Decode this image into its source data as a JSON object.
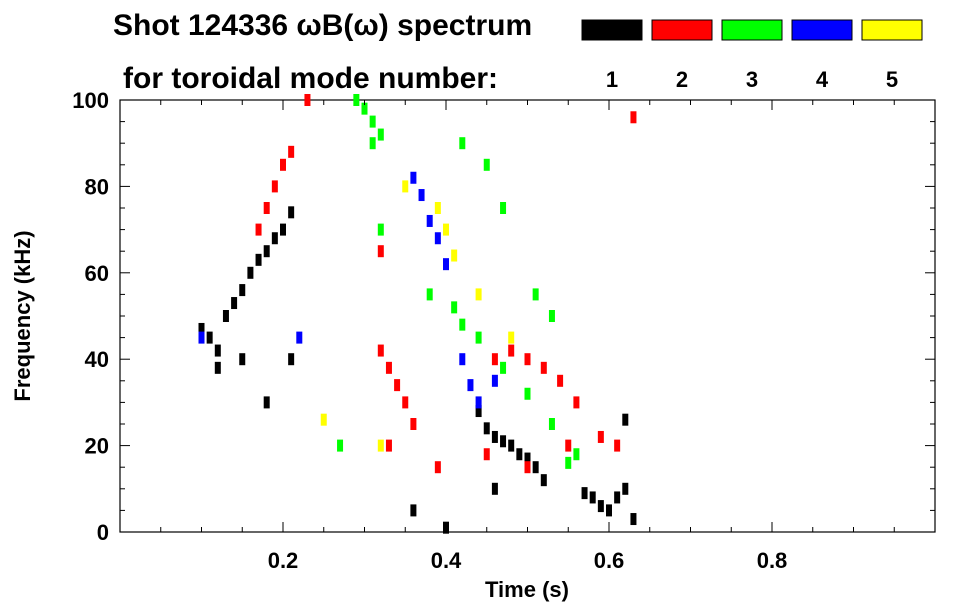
{
  "chart_data": {
    "type": "scatter",
    "title_line1": "Shot 124336 ωB(ω) spectrum",
    "title_line2": "for toroidal mode number:",
    "xlabel": "Time (s)",
    "ylabel": "Frequency (kHz)",
    "xlim": [
      0.0,
      1.0
    ],
    "ylim": [
      0,
      100
    ],
    "xticks": [
      {
        "value": 0.2,
        "label": "0.2"
      },
      {
        "value": 0.4,
        "label": "0.4"
      },
      {
        "value": 0.6,
        "label": "0.6"
      },
      {
        "value": 0.8,
        "label": "0.8"
      }
    ],
    "yticks": [
      {
        "value": 0,
        "label": "0"
      },
      {
        "value": 20,
        "label": "20"
      },
      {
        "value": 40,
        "label": "40"
      },
      {
        "value": 60,
        "label": "60"
      },
      {
        "value": 80,
        "label": "80"
      },
      {
        "value": 100,
        "label": "100"
      }
    ],
    "legend": [
      {
        "label": "1",
        "color": "#000000"
      },
      {
        "label": "2",
        "color": "#ff0000"
      },
      {
        "label": "3",
        "color": "#00ff00"
      },
      {
        "label": "4",
        "color": "#0000ff"
      },
      {
        "label": "5",
        "color": "#ffff00"
      }
    ],
    "series": [
      {
        "name": "n=1",
        "color": "#000000",
        "points": [
          [
            0.1,
            47
          ],
          [
            0.11,
            45
          ],
          [
            0.12,
            42
          ],
          [
            0.13,
            50
          ],
          [
            0.14,
            53
          ],
          [
            0.15,
            56
          ],
          [
            0.16,
            60
          ],
          [
            0.17,
            63
          ],
          [
            0.18,
            65
          ],
          [
            0.19,
            68
          ],
          [
            0.2,
            70
          ],
          [
            0.21,
            74
          ],
          [
            0.12,
            38
          ],
          [
            0.15,
            40
          ],
          [
            0.18,
            30
          ],
          [
            0.21,
            40
          ],
          [
            0.44,
            28
          ],
          [
            0.45,
            24
          ],
          [
            0.46,
            22
          ],
          [
            0.47,
            21
          ],
          [
            0.48,
            20
          ],
          [
            0.49,
            18
          ],
          [
            0.5,
            17
          ],
          [
            0.51,
            15
          ],
          [
            0.52,
            12
          ],
          [
            0.57,
            9
          ],
          [
            0.58,
            8
          ],
          [
            0.59,
            6
          ],
          [
            0.6,
            5
          ],
          [
            0.61,
            8
          ],
          [
            0.62,
            10
          ],
          [
            0.63,
            3
          ],
          [
            0.62,
            26
          ],
          [
            0.46,
            10
          ],
          [
            0.4,
            1
          ],
          [
            0.36,
            5
          ]
        ]
      },
      {
        "name": "n=2",
        "color": "#ff0000",
        "points": [
          [
            0.18,
            75
          ],
          [
            0.19,
            80
          ],
          [
            0.2,
            85
          ],
          [
            0.21,
            88
          ],
          [
            0.17,
            70
          ],
          [
            0.23,
            100
          ],
          [
            0.32,
            65
          ],
          [
            0.32,
            42
          ],
          [
            0.33,
            38
          ],
          [
            0.34,
            34
          ],
          [
            0.35,
            30
          ],
          [
            0.36,
            25
          ],
          [
            0.33,
            20
          ],
          [
            0.46,
            40
          ],
          [
            0.48,
            42
          ],
          [
            0.5,
            40
          ],
          [
            0.52,
            38
          ],
          [
            0.54,
            35
          ],
          [
            0.56,
            30
          ],
          [
            0.59,
            22
          ],
          [
            0.61,
            20
          ],
          [
            0.5,
            15
          ],
          [
            0.45,
            18
          ],
          [
            0.55,
            20
          ],
          [
            0.63,
            96
          ],
          [
            0.39,
            15
          ]
        ]
      },
      {
        "name": "n=3",
        "color": "#00ff00",
        "points": [
          [
            0.29,
            100
          ],
          [
            0.3,
            98
          ],
          [
            0.31,
            95
          ],
          [
            0.32,
            92
          ],
          [
            0.31,
            90
          ],
          [
            0.32,
            70
          ],
          [
            0.38,
            55
          ],
          [
            0.41,
            52
          ],
          [
            0.42,
            48
          ],
          [
            0.44,
            45
          ],
          [
            0.47,
            38
          ],
          [
            0.5,
            32
          ],
          [
            0.53,
            25
          ],
          [
            0.56,
            18
          ],
          [
            0.55,
            16
          ],
          [
            0.27,
            20
          ],
          [
            0.42,
            90
          ],
          [
            0.45,
            85
          ],
          [
            0.47,
            75
          ],
          [
            0.51,
            55
          ],
          [
            0.53,
            50
          ]
        ]
      },
      {
        "name": "n=4",
        "color": "#0000ff",
        "points": [
          [
            0.36,
            82
          ],
          [
            0.37,
            78
          ],
          [
            0.38,
            72
          ],
          [
            0.39,
            68
          ],
          [
            0.4,
            62
          ],
          [
            0.42,
            40
          ],
          [
            0.43,
            34
          ],
          [
            0.44,
            30
          ],
          [
            0.1,
            45
          ],
          [
            0.22,
            45
          ],
          [
            0.46,
            35
          ]
        ]
      },
      {
        "name": "n=5",
        "color": "#ffff00",
        "points": [
          [
            0.35,
            80
          ],
          [
            0.39,
            75
          ],
          [
            0.4,
            70
          ],
          [
            0.41,
            64
          ],
          [
            0.44,
            55
          ],
          [
            0.48,
            45
          ],
          [
            0.32,
            20
          ],
          [
            0.25,
            26
          ]
        ]
      }
    ]
  }
}
